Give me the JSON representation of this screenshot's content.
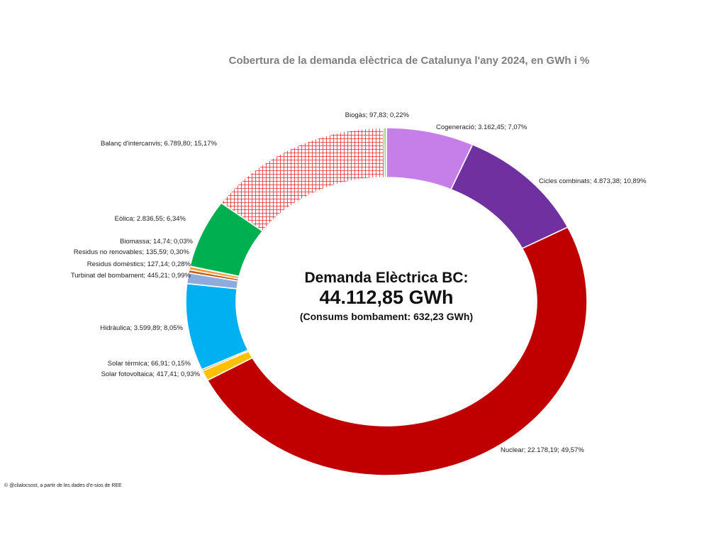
{
  "chart_data": {
    "type": "donut",
    "title": "Cobertura de la demanda elèctrica de Catalunya l'any 2024, en GWh i %",
    "center": {
      "heading": "Demanda Elèctrica BC:",
      "value": "44.112,85 GWh",
      "subtitle": "(Consums bombament: 632,23 GWh)"
    },
    "slices": [
      {
        "label": "Cogeneració; 3.162,45; 7,07%",
        "value": 3162.45,
        "percent": 7.07,
        "color": "#c67ee8"
      },
      {
        "label": "Cicles combinats; 4.873,38; 10,89%",
        "value": 4873.38,
        "percent": 10.89,
        "color": "#7030a0"
      },
      {
        "label": "Nuclear; 22.178,19; 49,57%",
        "value": 22178.19,
        "percent": 49.57,
        "color": "#c00000"
      },
      {
        "label": "Solar fotovoltaica; 417,41; 0,93%",
        "value": 417.41,
        "percent": 0.93,
        "color": "#ffc000"
      },
      {
        "label": "Solar tèrmica; 66,91; 0,15%",
        "value": 66.91,
        "percent": 0.15,
        "color": "#c55a11"
      },
      {
        "label": "Hidràulica; 3.599,89; 8,05%",
        "value": 3599.89,
        "percent": 8.05,
        "color": "#00b0f0"
      },
      {
        "label": "Turbinat del bombament; 445,21; 0,99%",
        "value": 445.21,
        "percent": 0.99,
        "color": "#8faadc"
      },
      {
        "label": "Residus domèstics; 127,14; 0,28%",
        "value": 127.14,
        "percent": 0.28,
        "color": "#c55a11"
      },
      {
        "label": "Residus no renovables; 135,59; 0,30%",
        "value": 135.59,
        "percent": 0.3,
        "color": "#ff9933"
      },
      {
        "label": "Biomassa; 14,74; 0,03%",
        "value": 14.74,
        "percent": 0.03,
        "color": "#548235"
      },
      {
        "label": "Eòlica; 2.836,55; 6,34%",
        "value": 2836.55,
        "percent": 6.34,
        "color": "#00b050"
      },
      {
        "label": "Balanç d'intercanvis; 6.789,80; 15,17%",
        "value": 6789.8,
        "percent": 15.17,
        "color": "#e8282e",
        "pattern": "crosshatch"
      },
      {
        "label": "Biogàs; 97,83; 0,22%",
        "value": 97.83,
        "percent": 0.22,
        "color": "#a9d18e"
      }
    ]
  },
  "credit": "© @clialocsost, a partir de les dades d'e-sios de REE"
}
